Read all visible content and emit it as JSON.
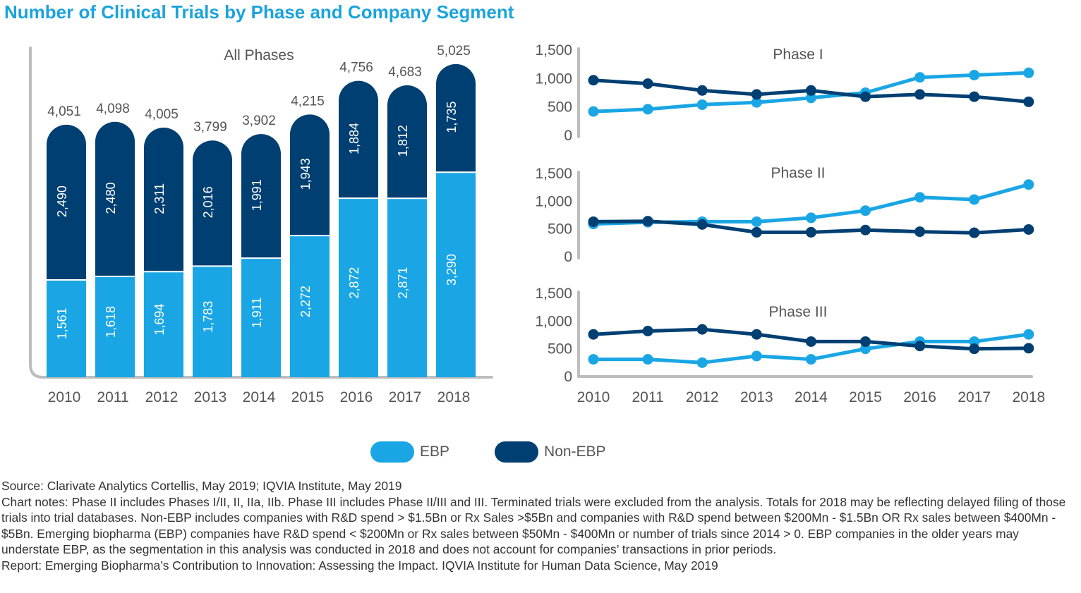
{
  "title": "Number of Clinical Trials by Phase and Company Segment",
  "colors": {
    "ebp": "#1aa6e4",
    "non_ebp": "#003f72",
    "axis": "#bdbdbd",
    "text": "#555555",
    "title": "#1ba3dc"
  },
  "legend": [
    {
      "label": "EBP",
      "color": "#1aa6e4"
    },
    {
      "label": "Non-EBP",
      "color": "#003f72"
    }
  ],
  "chart_data": [
    {
      "type": "bar",
      "stacked": true,
      "title": "All Phases",
      "categories": [
        "2010",
        "2011",
        "2012",
        "2013",
        "2014",
        "2015",
        "2016",
        "2017",
        "2018"
      ],
      "series": [
        {
          "name": "EBP",
          "values": [
            1561,
            1618,
            1694,
            1783,
            1911,
            2272,
            2872,
            2871,
            3290
          ]
        },
        {
          "name": "Non-EBP",
          "values": [
            2490,
            2480,
            2311,
            2016,
            1991,
            1943,
            1884,
            1812,
            1735
          ]
        }
      ],
      "totals": [
        4051,
        4098,
        4005,
        3799,
        3902,
        4215,
        4756,
        4683,
        5025
      ],
      "value_labels": {
        "EBP": [
          "1,561",
          "1,618",
          "1,694",
          "1,783",
          "1,911",
          "2,272",
          "2,872",
          "2,871",
          "3,290"
        ],
        "Non-EBP": [
          "2,490",
          "2,480",
          "2,311",
          "2,016",
          "1,991",
          "1,943",
          "1,884",
          "1,812",
          "1,735"
        ]
      },
      "total_labels": [
        "4,051",
        "4,098",
        "4,005",
        "3,799",
        "3,902",
        "4,215",
        "4,756",
        "4,683",
        "5,025"
      ],
      "ylim": [
        0,
        5600
      ]
    },
    {
      "type": "line",
      "title": "Phase I",
      "x": [
        "2010",
        "2011",
        "2012",
        "2013",
        "2014",
        "2015",
        "2016",
        "2017",
        "2018"
      ],
      "series": [
        {
          "name": "EBP",
          "values": [
            420,
            460,
            540,
            580,
            660,
            750,
            1020,
            1060,
            1100
          ]
        },
        {
          "name": "Non-EBP",
          "values": [
            970,
            910,
            790,
            720,
            790,
            680,
            720,
            680,
            590
          ]
        }
      ],
      "ylim": [
        0,
        1500
      ],
      "yticks": [
        "0",
        "500",
        "1,000",
        "1,500"
      ]
    },
    {
      "type": "line",
      "title": "Phase II",
      "x": [
        "2010",
        "2011",
        "2012",
        "2013",
        "2014",
        "2015",
        "2016",
        "2017",
        "2018"
      ],
      "series": [
        {
          "name": "EBP",
          "values": [
            590,
            620,
            630,
            630,
            700,
            830,
            1070,
            1030,
            1300
          ]
        },
        {
          "name": "Non-EBP",
          "values": [
            630,
            640,
            580,
            440,
            440,
            480,
            450,
            430,
            490
          ]
        }
      ],
      "ylim": [
        0,
        1500
      ],
      "yticks": [
        "0",
        "500",
        "1,000",
        "1,500"
      ]
    },
    {
      "type": "line",
      "title": "Phase III",
      "x": [
        "2010",
        "2011",
        "2012",
        "2013",
        "2014",
        "2015",
        "2016",
        "2017",
        "2018"
      ],
      "series": [
        {
          "name": "EBP",
          "values": [
            310,
            310,
            250,
            370,
            310,
            500,
            630,
            630,
            760
          ]
        },
        {
          "name": "Non-EBP",
          "values": [
            760,
            820,
            850,
            760,
            630,
            630,
            550,
            500,
            510
          ]
        }
      ],
      "ylim": [
        0,
        1500
      ],
      "yticks": [
        "0",
        "500",
        "1,000",
        "1,500"
      ]
    }
  ],
  "notes": {
    "source": "Source: Clarivate Analytics Cortellis, May 2019; IQVIA Institute, May 2019",
    "chart_notes": "Chart notes: Phase II includes Phases I/II, II, IIa, IIb. Phase III includes Phase II/III and III. Terminated trials were excluded from the analysis. Totals for 2018 may be reflecting delayed filing of those trials into trial databases. Non-EBP includes companies with R&D spend > $1.5Bn or Rx Sales >$5Bn and companies with R&D spend between $200Mn - $1.5Bn OR Rx sales between $400Mn - $5Bn. Emerging biopharma (EBP) companies have R&D spend < $200Mn or Rx sales between $50Mn - $400Mn or number of trials since 2014 > 0. EBP companies in the older years may understate EBP, as the segmentation in this analysis was conducted in 2018 and does not account for companies’ transactions in prior periods.",
    "report": "Report: Emerging Biopharma’s Contribution to Innovation: Assessing the Impact. IQVIA Institute for Human Data Science, May 2019"
  }
}
